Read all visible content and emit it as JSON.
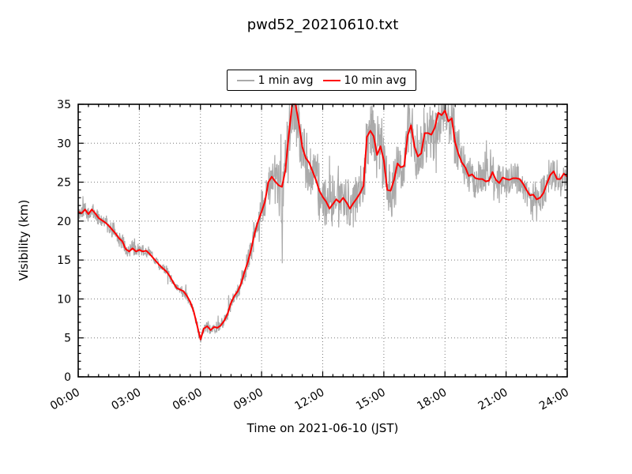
{
  "figure": {
    "title": "pwd52_20210610.txt",
    "background_color": "#ffffff"
  },
  "legend": {
    "items": [
      {
        "label": "1 min avg",
        "color": "#aaaaaa"
      },
      {
        "label": "10 min avg",
        "color": "#ff0000"
      }
    ]
  },
  "chart_data": {
    "type": "line",
    "title": "pwd52_20210610.txt",
    "xlabel": "Time on 2021-06-10 (JST)",
    "ylabel": "Visibility (km)",
    "xlim_hours": [
      0,
      24
    ],
    "ylim": [
      0,
      35
    ],
    "x_tick_hours": [
      0,
      3,
      6,
      9,
      12,
      15,
      18,
      21,
      24
    ],
    "x_tick_labels": [
      "00:00",
      "03:00",
      "06:00",
      "09:00",
      "12:00",
      "15:00",
      "18:00",
      "21:00",
      "24:00"
    ],
    "y_ticks": [
      0,
      5,
      10,
      15,
      20,
      25,
      30,
      35
    ],
    "x_minor_step_hours": 0.5,
    "y_minor_step": 1,
    "grid": {
      "shown": true,
      "style": "dotted",
      "color": "#7a7a7a"
    },
    "frame_color": "#000000",
    "series": [
      {
        "name": "1 min avg",
        "color": "#aaaaaa",
        "line_width": 1.2,
        "render_note": "noisy 1-minute samples scattered around the 10 min avg curve; spikes clipped at ylim 35"
      },
      {
        "name": "10 min avg",
        "color": "#ff0000",
        "line_width": 2,
        "x_step_hours": 0.166667,
        "values": [
          21.2,
          21.0,
          21.5,
          20.9,
          21.5,
          21.0,
          20.4,
          20.1,
          19.8,
          19.4,
          18.9,
          18.4,
          17.8,
          17.4,
          16.4,
          16.1,
          16.5,
          16.1,
          16.3,
          16.1,
          16.2,
          15.8,
          15.3,
          14.8,
          14.3,
          13.9,
          13.5,
          12.9,
          12.1,
          11.4,
          11.2,
          11.0,
          10.4,
          9.6,
          8.4,
          6.6,
          4.8,
          6.2,
          6.5,
          6.0,
          6.4,
          6.3,
          6.6,
          7.2,
          8.1,
          9.5,
          10.4,
          11.0,
          12.0,
          13.5,
          14.8,
          16.5,
          18.5,
          20.0,
          21.2,
          22.5,
          25.0,
          25.7,
          25.1,
          24.6,
          24.4,
          26.5,
          31.0,
          35.0,
          35.0,
          32.5,
          29.5,
          28.1,
          27.5,
          26.4,
          25.3,
          23.9,
          23.1,
          22.5,
          21.6,
          22.2,
          22.8,
          22.4,
          23.0,
          22.4,
          21.6,
          22.3,
          22.9,
          23.6,
          24.5,
          30.8,
          31.6,
          30.9,
          28.5,
          29.6,
          27.8,
          24.0,
          23.9,
          25.3,
          27.4,
          26.9,
          27.1,
          31.0,
          32.3,
          29.6,
          28.3,
          28.7,
          31.3,
          31.3,
          31.1,
          32.0,
          33.9,
          33.6,
          34.2,
          32.8,
          33.2,
          30.1,
          28.6,
          27.5,
          26.9,
          25.8,
          26.0,
          25.5,
          25.4,
          25.4,
          25.1,
          25.2,
          26.3,
          25.3,
          24.9,
          25.6,
          25.4,
          25.3,
          25.5,
          25.5,
          25.4,
          24.8,
          24.0,
          23.3,
          23.4,
          22.8,
          23.0,
          23.6,
          24.8,
          25.9,
          26.4,
          25.4,
          25.4,
          26.1,
          25.7
        ]
      }
    ],
    "one_min_noise_amplitude_per_hour": [
      1.3,
      1.2,
      1.1,
      1.0,
      0.9,
      0.8,
      0.8,
      1.0,
      1.2,
      3.5,
      5.5,
      5.0,
      4.2,
      4.0,
      4.5,
      5.0,
      5.0,
      4.8,
      4.5,
      3.2,
      2.8,
      2.6,
      2.6,
      3.0,
      2.6
    ]
  }
}
